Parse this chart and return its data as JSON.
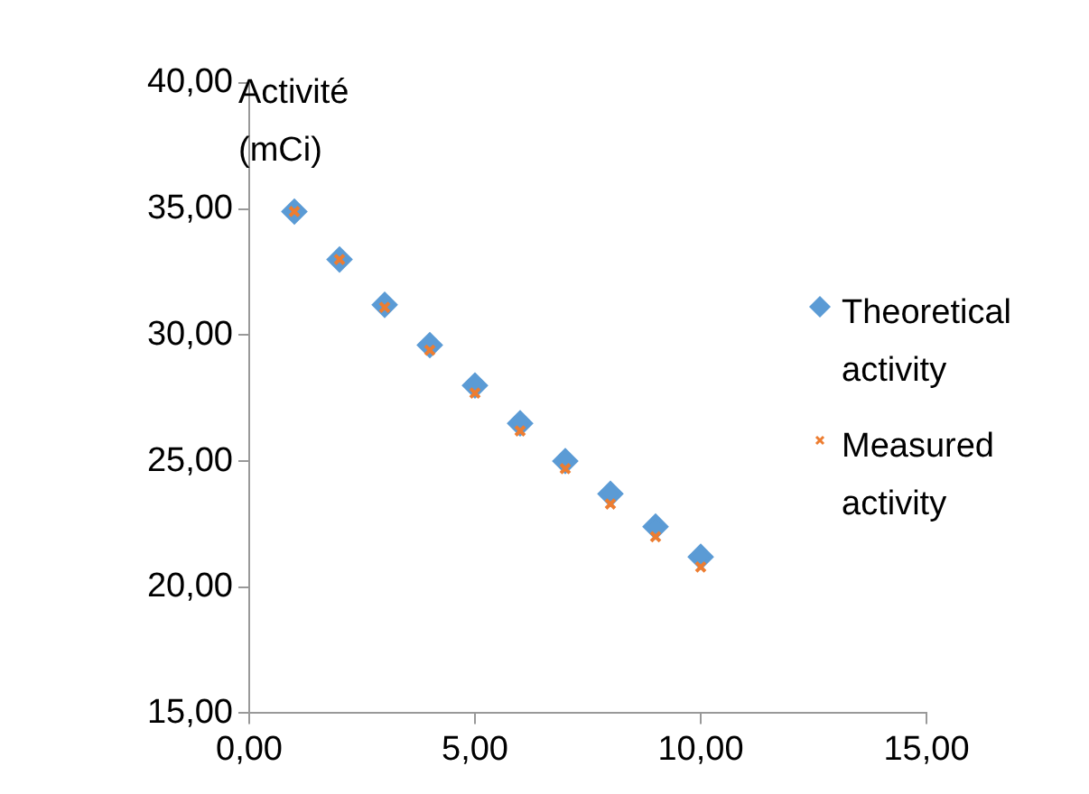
{
  "chart_data": {
    "type": "scatter",
    "ylabel": "Activité (mCi)",
    "x": [
      1,
      2,
      3,
      4,
      5,
      6,
      7,
      8,
      9,
      10
    ],
    "series": [
      {
        "name": "Theoretical activity",
        "color": "#5b9bd5",
        "marker": "diamond",
        "values": [
          34.9,
          33.0,
          31.2,
          29.6,
          28.0,
          26.5,
          25.0,
          23.7,
          22.4,
          21.2
        ]
      },
      {
        "name": "Measured activity",
        "color": "#ed7d31",
        "marker": "cross",
        "values": [
          34.9,
          33.0,
          31.1,
          29.4,
          27.7,
          26.2,
          24.7,
          23.3,
          22.0,
          20.8
        ]
      }
    ],
    "xlim": [
      0,
      15
    ],
    "xticks": [
      {
        "value": 0,
        "label": "0,00"
      },
      {
        "value": 5,
        "label": "5,00"
      },
      {
        "value": 10,
        "label": "10,00"
      },
      {
        "value": 15,
        "label": "15,00"
      }
    ],
    "ylim": [
      15,
      40
    ],
    "yticks": [
      {
        "value": 15,
        "label": "15,00"
      },
      {
        "value": 20,
        "label": "20,00"
      },
      {
        "value": 25,
        "label": "25,00"
      },
      {
        "value": 30,
        "label": "30,00"
      },
      {
        "value": 35,
        "label": "35,00"
      },
      {
        "value": 40,
        "label": "40,00"
      }
    ],
    "grid": false,
    "legend": "right"
  }
}
